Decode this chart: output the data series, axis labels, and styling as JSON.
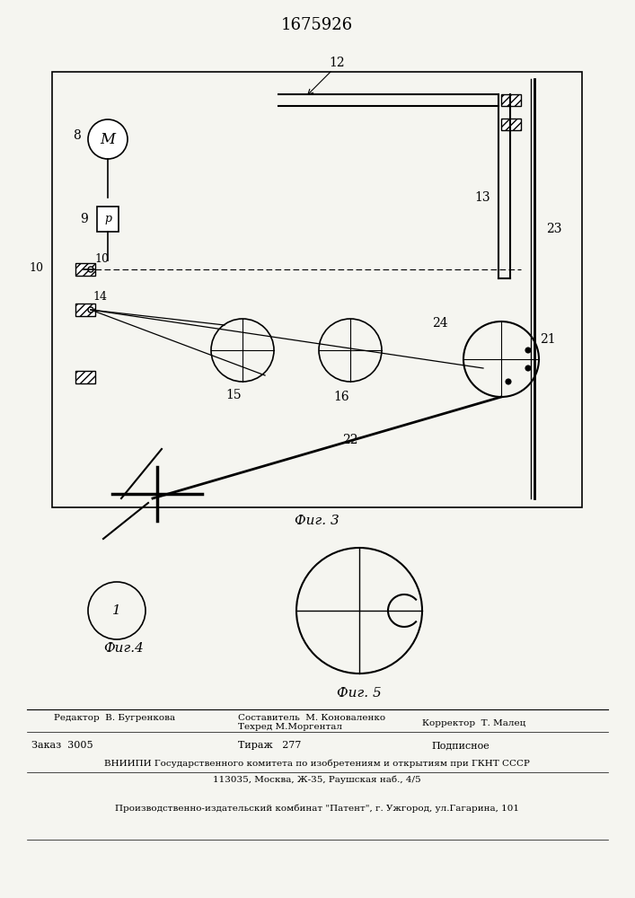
{
  "bg_color": "#f5f5f0",
  "patent_number": "1675926",
  "fig3_label": "Фиг. 3",
  "fig4_label": "Фиг.4",
  "fig5_label": "Фиг. 5",
  "editor_line": "Редактор  В. Бугренкова",
  "composer_line": "Составитель  М. Коноваленко",
  "techred_line": "Техред М.Моргентал",
  "corrector_line": "Корректор  Т. Малец",
  "order_line": "Заказ  3005",
  "tirazh_line": "Тираж   277",
  "podpisnoe_line": "Подписное",
  "vniiipi_line1": "ВНИИПИ Государственного комитета по изобретениям и открытиям при ГКНТ СССР",
  "vniiipi_line2": "113035, Москва, Ж-35, Раушская наб., 4/5",
  "factory_line": "Производственно-издательский комбинат \"Патент\", г. Ужгород, ул.Гагарина, 101"
}
